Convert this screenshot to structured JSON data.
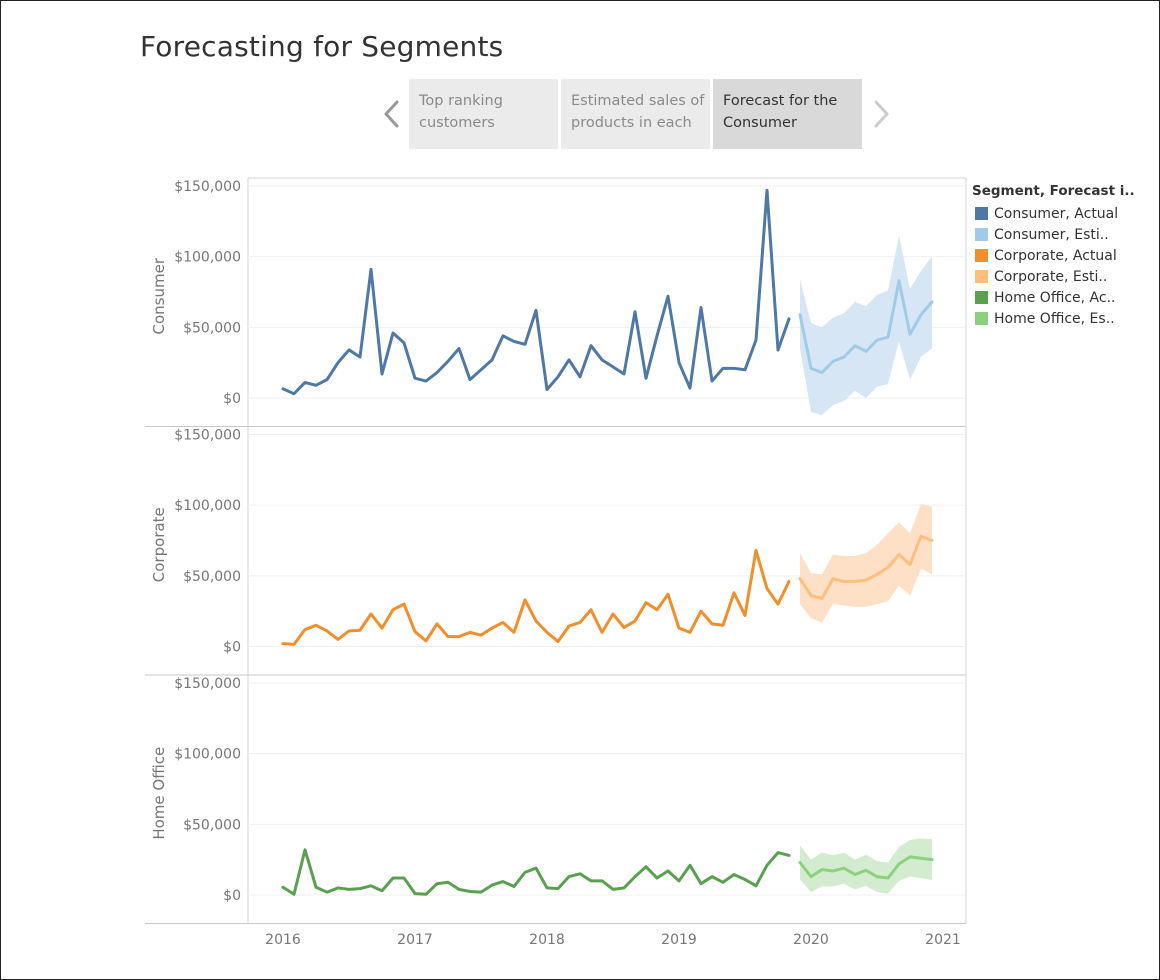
{
  "page": {
    "title": "Forecasting for Segments"
  },
  "story": {
    "points": [
      {
        "line1": "Top ranking",
        "line2": "customers",
        "active": false
      },
      {
        "line1": "Estimated sales of",
        "line2": "products in each",
        "active": false
      },
      {
        "line1": "Forecast for the",
        "line2": "Consumer",
        "active": true
      }
    ],
    "prev_icon": "chevron-left-icon",
    "next_icon": "chevron-right-icon"
  },
  "legend": {
    "title": "Segment, Forecast i..",
    "items": [
      {
        "label": "Consumer, Actual",
        "color": "#4e79a7"
      },
      {
        "label": "Consumer, Esti..",
        "color": "#a0cbe8"
      },
      {
        "label": "Corporate, Actual",
        "color": "#f28e2b"
      },
      {
        "label": "Corporate, Esti..",
        "color": "#ffbe7d"
      },
      {
        "label": "Home Office, Ac..",
        "color": "#59a14f"
      },
      {
        "label": "Home Office, Es..",
        "color": "#8cd17d"
      }
    ]
  },
  "chart_data": {
    "type": "line",
    "x_type": "month",
    "x_start": "2016-01",
    "x_ticks": [
      "2016",
      "2017",
      "2018",
      "2019",
      "2020",
      "2021"
    ],
    "y_ticks": [
      "$150,000",
      "$100,000",
      "$50,000",
      "$0"
    ],
    "ylim": [
      0,
      150000
    ],
    "forecast_start": "2019-12",
    "grid": true,
    "legend_position": "right",
    "panels": [
      {
        "name": "Consumer",
        "actual_color": "#4e79a7",
        "forecast_color": "#a0cbe8",
        "band_color": "#d6e6f5",
        "actual": [
          6500,
          3000,
          11000,
          9000,
          13000,
          25000,
          34000,
          29000,
          91000,
          17000,
          46000,
          39000,
          14000,
          12000,
          18000,
          26000,
          35000,
          13000,
          20000,
          27000,
          44000,
          40000,
          38000,
          62000,
          6000,
          15000,
          27000,
          15000,
          37000,
          27000,
          22000,
          17000,
          61000,
          14000,
          44000,
          72000,
          25000,
          7000,
          64000,
          12000,
          21000,
          21000,
          20000,
          41000,
          147000,
          34000,
          56000
        ],
        "forecast": [
          59000,
          21000,
          18000,
          26000,
          29000,
          37000,
          33000,
          41000,
          43000,
          83000,
          45000,
          59000,
          68000
        ],
        "band_low": [
          35000,
          -10000,
          -12000,
          -5000,
          -2000,
          5000,
          0,
          8000,
          10000,
          40000,
          13000,
          29000,
          35000
        ],
        "band_high": [
          84000,
          53000,
          50000,
          57000,
          60000,
          68000,
          65000,
          73000,
          76000,
          115000,
          77000,
          90000,
          100000
        ]
      },
      {
        "name": "Corporate",
        "actual_color": "#f28e2b",
        "forecast_color": "#ffbe7d",
        "band_color": "#fde0c5",
        "actual": [
          2000,
          1500,
          12000,
          15000,
          11000,
          5000,
          11000,
          11500,
          23000,
          13000,
          26000,
          30000,
          10500,
          4000,
          16000,
          7000,
          7000,
          10000,
          8000,
          13000,
          17000,
          10000,
          33000,
          18000,
          10000,
          3500,
          14500,
          17000,
          26000,
          10000,
          23000,
          13500,
          18000,
          31000,
          26000,
          37000,
          13000,
          10000,
          25000,
          16000,
          15000,
          38000,
          22000,
          68000,
          41000,
          30000,
          46000
        ],
        "forecast": [
          48000,
          36000,
          34000,
          48000,
          46000,
          46000,
          47000,
          51000,
          56000,
          65000,
          58000,
          78000,
          75000
        ],
        "band_low": [
          30000,
          20000,
          17000,
          30000,
          29000,
          28000,
          28000,
          30000,
          32000,
          43000,
          36000,
          55000,
          51000
        ],
        "band_high": [
          66000,
          52000,
          51000,
          65000,
          64000,
          64000,
          66000,
          72000,
          80000,
          88000,
          80000,
          101000,
          99000
        ]
      },
      {
        "name": "Home Office",
        "actual_color": "#59a14f",
        "forecast_color": "#8cd17d",
        "band_color": "#d3ecd0",
        "actual": [
          5500,
          500,
          32000,
          5500,
          2000,
          5000,
          4000,
          4500,
          6500,
          3000,
          12000,
          12000,
          1000,
          500,
          8000,
          9000,
          4000,
          2500,
          2000,
          7000,
          9500,
          6000,
          16000,
          19000,
          5000,
          4500,
          13000,
          15000,
          10000,
          10000,
          4000,
          5000,
          13000,
          20000,
          12000,
          17000,
          10000,
          21000,
          8000,
          13000,
          9000,
          14500,
          11000,
          6500,
          21000,
          30000,
          28000
        ],
        "forecast": [
          23000,
          13000,
          18000,
          17000,
          19000,
          14500,
          17500,
          13000,
          12000,
          22000,
          27000,
          26000,
          25000
        ],
        "band_low": [
          11000,
          2000,
          6000,
          6000,
          8000,
          4000,
          6500,
          2000,
          1000,
          10000,
          13000,
          12000,
          10500
        ],
        "band_high": [
          35000,
          25000,
          30000,
          28000,
          30000,
          25000,
          28500,
          24000,
          23000,
          34000,
          39000,
          40000,
          39500
        ]
      }
    ]
  }
}
